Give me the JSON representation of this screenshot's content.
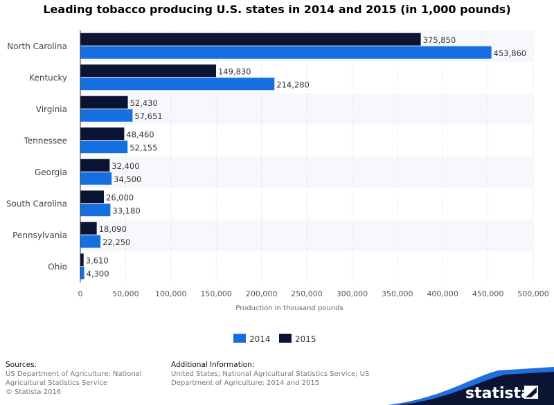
{
  "chart_data": {
    "type": "bar",
    "orientation": "horizontal",
    "title": "Leading tobacco producing U.S. states in 2014 and 2015 (in 1,000 pounds)",
    "xlabel": "Production in thousand pounds",
    "categories": [
      "North Carolina",
      "Kentucky",
      "Virginia",
      "Tennessee",
      "Georgia",
      "South Carolina",
      "Pennsylvania",
      "Ohio"
    ],
    "series": [
      {
        "name": "2015",
        "color": "#0b1533",
        "values": [
          375850,
          149830,
          52430,
          48460,
          32400,
          26000,
          18090,
          3610
        ],
        "labels": [
          "375,850",
          "149,830",
          "52,430",
          "48,460",
          "32,400",
          "26,000",
          "18,090",
          "3,610"
        ]
      },
      {
        "name": "2014",
        "color": "#166fe0",
        "values": [
          453860,
          214280,
          57651,
          52155,
          34500,
          33180,
          22250,
          4300
        ],
        "labels": [
          "453,860",
          "214,280",
          "57,651",
          "52,155",
          "34,500",
          "33,180",
          "22,250",
          "4,300"
        ]
      }
    ],
    "xlim": [
      0,
      500000
    ],
    "xticks": [
      0,
      50000,
      100000,
      150000,
      200000,
      250000,
      300000,
      350000,
      400000,
      450000,
      500000
    ],
    "xtick_labels": [
      "0",
      "50,000",
      "100,000",
      "150,000",
      "200,000",
      "250,000",
      "300,000",
      "350,000",
      "400,000",
      "450,000",
      "500,000"
    ],
    "grid": true,
    "legend_position": "bottom",
    "legend": [
      {
        "name": "2014",
        "color": "#166fe0"
      },
      {
        "name": "2015",
        "color": "#0b1533"
      }
    ]
  },
  "footer": {
    "sources_heading": "Sources:",
    "sources_text": "US Department of Agriculture; National Agricultural Statistics Service",
    "copyright": "© Statista 2016",
    "additional_heading": "Additional Information:",
    "additional_text": "United States; National Agricultural Statistics Service; US Department of Agriculture; 2014 and 2015",
    "logo": "statista"
  }
}
